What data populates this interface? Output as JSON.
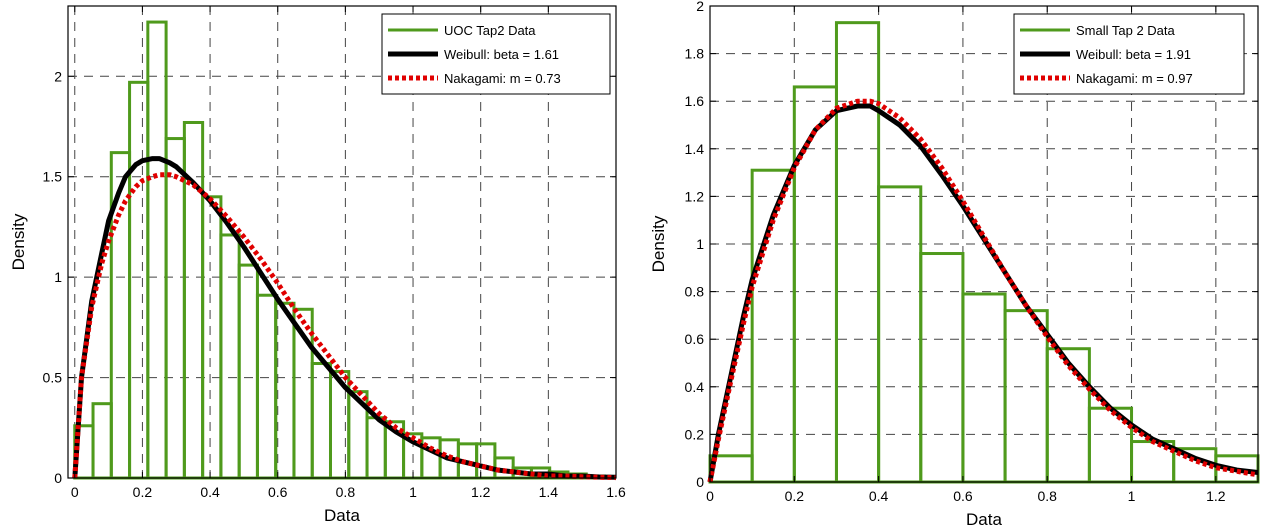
{
  "chart_data": [
    {
      "type": "bar",
      "xlabel": "Data",
      "ylabel": "Density",
      "xlim": [
        -0.02,
        1.6
      ],
      "ylim": [
        0,
        2.35
      ],
      "xticks": [
        0,
        0.2,
        0.4,
        0.6,
        0.8,
        1,
        1.2,
        1.4,
        1.6
      ],
      "xtick_labels": [
        "0",
        "0.2",
        "0.4",
        "0.6",
        "0.8",
        "1",
        "1.2",
        "1.4",
        "1.6"
      ],
      "yticks": [
        0,
        0.5,
        1,
        1.5,
        2
      ],
      "ytick_labels": [
        "0",
        "0.5",
        "1",
        "1.5",
        "2"
      ],
      "grid": true,
      "legend_position": "top-right",
      "histogram": {
        "name": "UOC Tap2 Data",
        "color": "#4f9a1c",
        "bin_width": 0.054,
        "bin_starts": [
          0.0,
          0.054,
          0.108,
          0.162,
          0.216,
          0.27,
          0.324,
          0.378,
          0.432,
          0.486,
          0.54,
          0.594,
          0.648,
          0.702,
          0.756,
          0.81,
          0.864,
          0.918,
          0.972,
          1.026,
          1.08,
          1.134,
          1.188,
          1.242,
          1.296,
          1.35,
          1.404,
          1.458,
          1.512
        ],
        "values": [
          0.26,
          0.37,
          1.62,
          1.97,
          2.27,
          1.69,
          1.77,
          1.4,
          1.21,
          1.06,
          0.91,
          0.87,
          0.84,
          0.57,
          0.53,
          0.43,
          0.3,
          0.28,
          0.22,
          0.2,
          0.19,
          0.17,
          0.17,
          0.1,
          0.05,
          0.05,
          0.03,
          0.02,
          0.01
        ]
      },
      "series": [
        {
          "name": "Weibull: beta = 1.61",
          "color": "#000000",
          "style": "solid",
          "x": [
            0,
            0.02,
            0.05,
            0.08,
            0.1,
            0.13,
            0.15,
            0.18,
            0.2,
            0.23,
            0.25,
            0.28,
            0.3,
            0.35,
            0.4,
            0.45,
            0.5,
            0.55,
            0.6,
            0.65,
            0.7,
            0.75,
            0.8,
            0.85,
            0.9,
            0.95,
            1.0,
            1.05,
            1.1,
            1.15,
            1.2,
            1.25,
            1.3,
            1.35,
            1.4,
            1.45,
            1.5,
            1.55,
            1.6
          ],
          "y": [
            0,
            0.5,
            0.88,
            1.12,
            1.28,
            1.42,
            1.5,
            1.56,
            1.58,
            1.59,
            1.59,
            1.57,
            1.55,
            1.47,
            1.38,
            1.27,
            1.15,
            1.02,
            0.89,
            0.77,
            0.65,
            0.55,
            0.45,
            0.37,
            0.29,
            0.23,
            0.18,
            0.14,
            0.1,
            0.08,
            0.06,
            0.04,
            0.03,
            0.02,
            0.02,
            0.01,
            0.01,
            0.005,
            0.004
          ]
        },
        {
          "name": "Nakagami: m = 0.73",
          "color": "#e00000",
          "style": "dotted",
          "x": [
            0,
            0.02,
            0.05,
            0.08,
            0.1,
            0.13,
            0.15,
            0.18,
            0.2,
            0.23,
            0.25,
            0.28,
            0.3,
            0.35,
            0.4,
            0.45,
            0.5,
            0.55,
            0.6,
            0.65,
            0.7,
            0.75,
            0.8,
            0.85,
            0.9,
            0.95,
            1.0,
            1.05,
            1.1,
            1.15,
            1.2,
            1.25,
            1.3,
            1.35,
            1.4,
            1.45,
            1.5,
            1.55,
            1.6
          ],
          "y": [
            0,
            0.5,
            0.85,
            1.07,
            1.18,
            1.31,
            1.38,
            1.45,
            1.48,
            1.5,
            1.51,
            1.51,
            1.5,
            1.46,
            1.39,
            1.3,
            1.2,
            1.09,
            0.97,
            0.84,
            0.72,
            0.61,
            0.5,
            0.41,
            0.32,
            0.25,
            0.2,
            0.15,
            0.11,
            0.08,
            0.06,
            0.04,
            0.03,
            0.02,
            0.01,
            0.01,
            0.006,
            0.004,
            0.002
          ]
        }
      ]
    },
    {
      "type": "bar",
      "xlabel": "Data",
      "ylabel": "Density",
      "xlim": [
        0,
        1.3
      ],
      "ylim": [
        0,
        2.0
      ],
      "xticks": [
        0,
        0.2,
        0.4,
        0.6,
        0.8,
        1,
        1.2
      ],
      "xtick_labels": [
        "0",
        "0.2",
        "0.4",
        "0.6",
        "0.8",
        "1",
        "1.2"
      ],
      "yticks": [
        0,
        0.2,
        0.4,
        0.6,
        0.8,
        1,
        1.2,
        1.4,
        1.6,
        1.8,
        2
      ],
      "ytick_labels": [
        "0",
        "0.2",
        "0.4",
        "0.6",
        "0.8",
        "1",
        "1.2",
        "1.4",
        "1.6",
        "1.8",
        "2"
      ],
      "grid": true,
      "legend_position": "top-right",
      "histogram": {
        "name": "Small Tap 2 Data",
        "color": "#4f9a1c",
        "bin_width": 0.1,
        "bin_starts": [
          0.0,
          0.1,
          0.2,
          0.3,
          0.4,
          0.5,
          0.6,
          0.7,
          0.8,
          0.9,
          1.0,
          1.1,
          1.2
        ],
        "values": [
          0.11,
          1.31,
          1.66,
          1.93,
          1.24,
          0.96,
          0.79,
          0.72,
          0.56,
          0.31,
          0.17,
          0.14,
          0.11
        ]
      },
      "series": [
        {
          "name": "Weibull: beta = 1.91",
          "color": "#000000",
          "style": "solid",
          "x": [
            0,
            0.02,
            0.05,
            0.08,
            0.1,
            0.15,
            0.2,
            0.25,
            0.3,
            0.35,
            0.38,
            0.4,
            0.45,
            0.5,
            0.55,
            0.6,
            0.65,
            0.7,
            0.75,
            0.8,
            0.85,
            0.9,
            0.95,
            1.0,
            1.05,
            1.1,
            1.15,
            1.2,
            1.25,
            1.3
          ],
          "y": [
            0,
            0.2,
            0.45,
            0.7,
            0.85,
            1.12,
            1.33,
            1.48,
            1.56,
            1.58,
            1.58,
            1.56,
            1.5,
            1.41,
            1.29,
            1.16,
            1.02,
            0.88,
            0.74,
            0.62,
            0.5,
            0.4,
            0.31,
            0.24,
            0.18,
            0.14,
            0.1,
            0.07,
            0.05,
            0.04
          ]
        },
        {
          "name": "Nakagami: m = 0.97",
          "color": "#e00000",
          "style": "dotted",
          "x": [
            0,
            0.02,
            0.05,
            0.08,
            0.1,
            0.15,
            0.2,
            0.25,
            0.3,
            0.35,
            0.38,
            0.4,
            0.45,
            0.5,
            0.55,
            0.6,
            0.65,
            0.7,
            0.75,
            0.8,
            0.85,
            0.9,
            0.95,
            1.0,
            1.05,
            1.1,
            1.15,
            1.2,
            1.25,
            1.3
          ],
          "y": [
            0,
            0.18,
            0.43,
            0.67,
            0.82,
            1.1,
            1.32,
            1.48,
            1.57,
            1.6,
            1.6,
            1.59,
            1.53,
            1.44,
            1.32,
            1.18,
            1.03,
            0.88,
            0.74,
            0.61,
            0.49,
            0.39,
            0.3,
            0.23,
            0.17,
            0.13,
            0.09,
            0.06,
            0.045,
            0.03
          ]
        }
      ]
    }
  ]
}
